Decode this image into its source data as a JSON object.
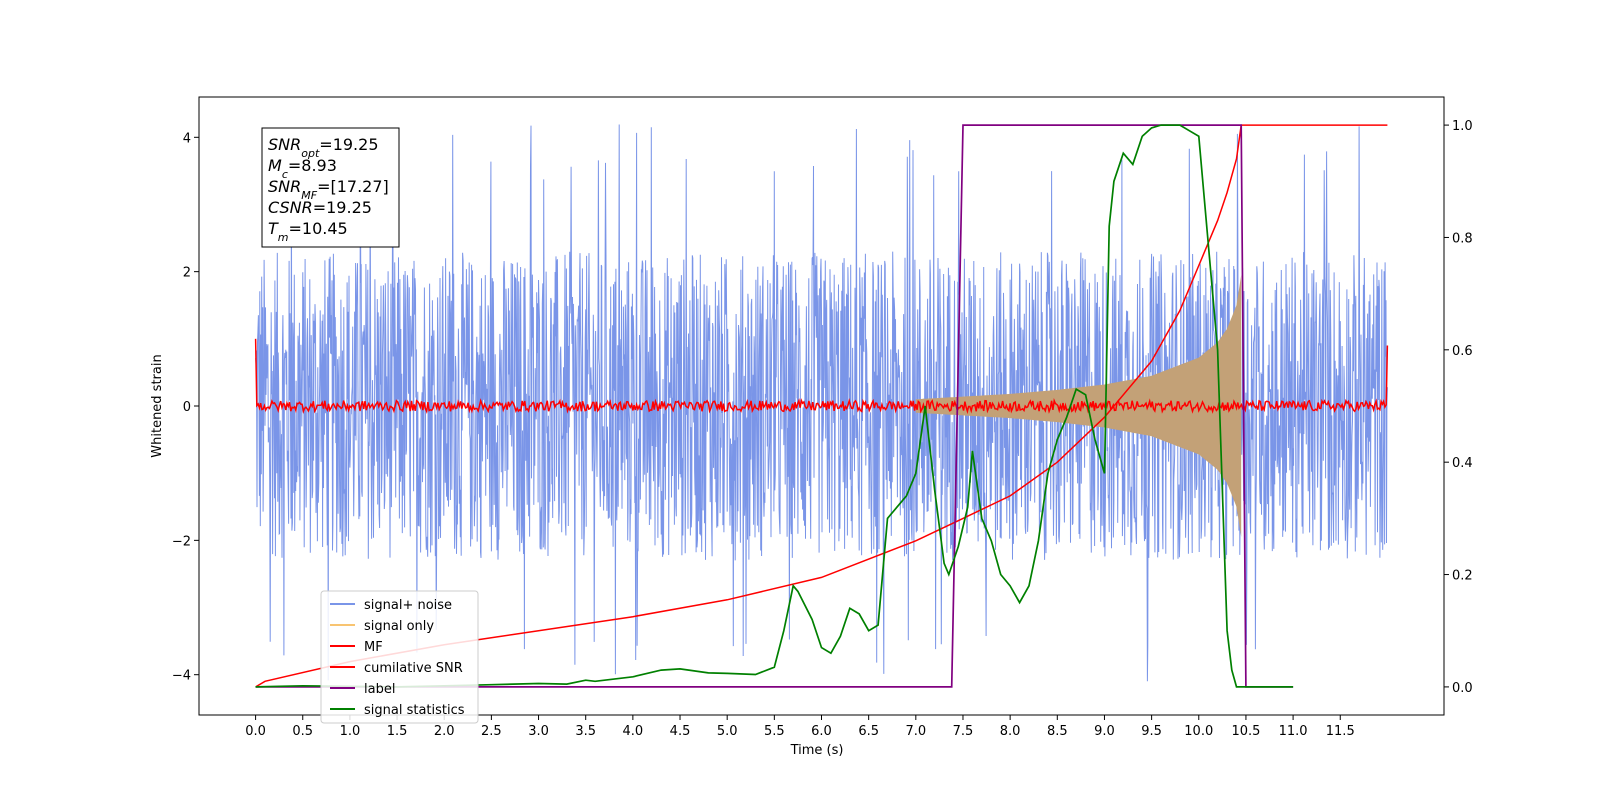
{
  "chart_data": {
    "type": "line",
    "xlabel": "Time (s)",
    "ylabel": "Whitened strain",
    "xlim": [
      -0.6,
      12.6
    ],
    "ylim": [
      -4.6,
      4.6
    ],
    "y2lim": [
      -0.05,
      1.05
    ],
    "xticks": [
      0.0,
      0.5,
      1.0,
      1.5,
      2.0,
      2.5,
      3.0,
      3.5,
      4.0,
      4.5,
      5.0,
      5.5,
      6.0,
      6.5,
      7.0,
      7.5,
      8.0,
      8.5,
      9.0,
      9.5,
      10.0,
      10.5,
      11.0,
      11.5
    ],
    "xtick_labels": [
      "0.0",
      "0.5",
      "1.0",
      "1.5",
      "2.0",
      "2.5",
      "3.0",
      "3.5",
      "4.0",
      "4.5",
      "5.0",
      "5.5",
      "6.0",
      "6.5",
      "7.0",
      "7.5",
      "8.0",
      "8.5",
      "9.0",
      "9.5",
      "10.0",
      "10.5",
      "11.0",
      "11.5"
    ],
    "yticks": [
      -4,
      -2,
      0,
      2,
      4
    ],
    "ytick_labels": [
      "−4",
      "−2",
      "0",
      "2",
      "4"
    ],
    "y2ticks": [
      0.0,
      0.2,
      0.4,
      0.6,
      0.8,
      1.0
    ],
    "y2tick_labels": [
      "0.0",
      "0.2",
      "0.4",
      "0.6",
      "0.8",
      "1.0"
    ],
    "grid": false,
    "legend_position": "lower-left",
    "annotation": {
      "position": "top-left",
      "lines": [
        {
          "base": "SNR",
          "sub": "opt",
          "value": "=19.25"
        },
        {
          "base": "M",
          "sub": "c",
          "value": "=8.93"
        },
        {
          "base": "SNR",
          "sub": "MF",
          "value": "=[17.27]"
        },
        {
          "base": "CSNR",
          "sub": "",
          "value": "=19.25"
        },
        {
          "base": "T",
          "sub": "m",
          "value": "=10.45"
        }
      ]
    },
    "noise": {
      "t_start": 0.0,
      "t_end": 12.0,
      "typical_range": [
        -2.3,
        2.3
      ],
      "extreme_range": [
        -4.1,
        4.2
      ]
    },
    "signal_envelope": {
      "t": [
        7.0,
        7.5,
        8.0,
        8.5,
        9.0,
        9.5,
        10.0,
        10.2,
        10.3,
        10.4,
        10.45
      ],
      "amplitude": [
        0.1,
        0.14,
        0.18,
        0.24,
        0.32,
        0.45,
        0.72,
        0.95,
        1.15,
        1.5,
        1.95
      ]
    },
    "mf": {
      "t_start": 0.0,
      "t_end": 12.0,
      "baseline": 0.0,
      "jitter": 0.08,
      "edge_values": [
        1.0,
        0.9
      ]
    },
    "cumulative_snr": {
      "t": [
        0.0,
        0.1,
        1.0,
        2.0,
        3.0,
        4.0,
        5.0,
        6.0,
        7.0,
        7.5,
        8.0,
        8.5,
        9.0,
        9.5,
        9.8,
        10.0,
        10.2,
        10.3,
        10.4,
        10.45,
        12.0
      ],
      "y": [
        0.0,
        0.01,
        0.045,
        0.075,
        0.1,
        0.125,
        0.155,
        0.195,
        0.26,
        0.3,
        0.34,
        0.4,
        0.48,
        0.58,
        0.67,
        0.75,
        0.83,
        0.88,
        0.94,
        1.0,
        1.0
      ]
    },
    "label": {
      "t": [
        0.0,
        7.38,
        7.5,
        10.45,
        10.5,
        11.0
      ],
      "y": [
        0.0,
        0.0,
        1.0,
        1.0,
        0.0,
        0.0
      ]
    },
    "signal_statistics": {
      "t": [
        0.0,
        0.5,
        1.0,
        1.5,
        2.0,
        2.5,
        3.0,
        3.3,
        3.5,
        3.6,
        4.0,
        4.3,
        4.5,
        4.8,
        5.0,
        5.3,
        5.5,
        5.6,
        5.7,
        5.75,
        5.9,
        6.0,
        6.1,
        6.2,
        6.3,
        6.4,
        6.5,
        6.6,
        6.7,
        6.8,
        6.9,
        7.0,
        7.1,
        7.2,
        7.3,
        7.35,
        7.45,
        7.55,
        7.6,
        7.7,
        7.8,
        7.9,
        8.0,
        8.1,
        8.2,
        8.3,
        8.4,
        8.5,
        8.6,
        8.7,
        8.8,
        8.9,
        9.0,
        9.05,
        9.1,
        9.2,
        9.3,
        9.4,
        9.5,
        9.6,
        9.7,
        9.8,
        9.9,
        10.0,
        10.2,
        10.3,
        10.35,
        10.4,
        10.45,
        10.5,
        11.0
      ],
      "y": [
        0.0,
        0.002,
        0.001,
        0.0,
        0.002,
        0.004,
        0.006,
        0.005,
        0.012,
        0.01,
        0.018,
        0.03,
        0.032,
        0.025,
        0.024,
        0.022,
        0.035,
        0.1,
        0.18,
        0.17,
        0.12,
        0.07,
        0.06,
        0.09,
        0.14,
        0.13,
        0.1,
        0.11,
        0.3,
        0.32,
        0.34,
        0.38,
        0.5,
        0.35,
        0.22,
        0.2,
        0.25,
        0.32,
        0.42,
        0.3,
        0.26,
        0.2,
        0.18,
        0.15,
        0.18,
        0.26,
        0.38,
        0.44,
        0.48,
        0.53,
        0.52,
        0.44,
        0.38,
        0.82,
        0.9,
        0.95,
        0.93,
        0.98,
        0.995,
        1.0,
        1.0,
        1.0,
        0.99,
        0.98,
        0.6,
        0.1,
        0.03,
        0.0,
        0.0,
        0.0,
        0.0
      ]
    },
    "series": [
      {
        "name": "signal+ noise",
        "color": "#7a95e8"
      },
      {
        "name": "signal only",
        "color": "#f8c471",
        "fill": "#c3a177"
      },
      {
        "name": "MF",
        "color": "#ff0000"
      },
      {
        "name": "cumilative SNR",
        "color": "#ff0000"
      },
      {
        "name": "label",
        "color": "#800080"
      },
      {
        "name": "signal statistics",
        "color": "#008000"
      }
    ]
  }
}
